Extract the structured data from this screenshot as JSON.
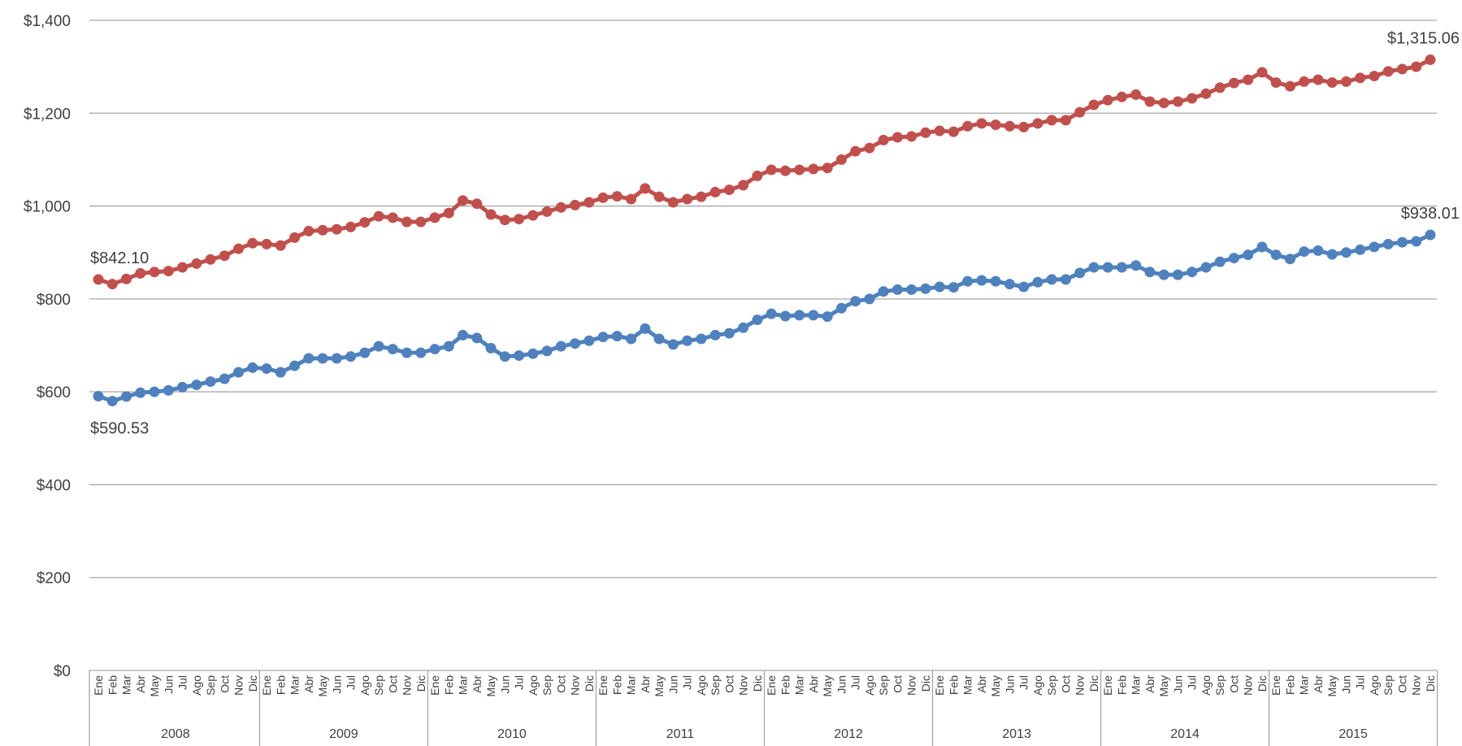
{
  "chart_data": {
    "type": "line",
    "title": "",
    "xlabel": "",
    "ylabel": "",
    "ylim": [
      0,
      1400
    ],
    "y_ticks": [
      "$0",
      "$200",
      "$400",
      "$600",
      "$800",
      "$1,000",
      "$1,200",
      "$1,400"
    ],
    "y_tick_values": [
      0,
      200,
      400,
      600,
      800,
      1000,
      1200,
      1400
    ],
    "grid": "horizontal",
    "legend": "none",
    "months": [
      "Ene",
      "Feb",
      "Mar",
      "Abr",
      "May",
      "Jun",
      "Jul",
      "Ago",
      "Sep",
      "Oct",
      "Nov",
      "Dic"
    ],
    "years": [
      "2008",
      "2009",
      "2010",
      "2011",
      "2012",
      "2013",
      "2014",
      "2015"
    ],
    "series": [
      {
        "color": "#c0504d",
        "values": [
          842,
          832,
          843,
          855,
          858,
          860,
          868,
          876,
          885,
          893,
          908,
          920,
          918,
          915,
          932,
          946,
          948,
          950,
          955,
          965,
          978,
          975,
          966,
          966,
          975,
          985,
          1012,
          1005,
          982,
          970,
          972,
          980,
          988,
          997,
          1002,
          1008,
          1018,
          1021,
          1015,
          1038,
          1020,
          1008,
          1015,
          1020,
          1030,
          1035,
          1045,
          1065,
          1078,
          1076,
          1078,
          1080,
          1082,
          1100,
          1118,
          1125,
          1142,
          1148,
          1150,
          1158,
          1162,
          1160,
          1172,
          1178,
          1175,
          1172,
          1170,
          1178,
          1185,
          1185,
          1202,
          1218,
          1228,
          1235,
          1240,
          1225,
          1222,
          1225,
          1232,
          1242,
          1255,
          1265,
          1272,
          1288,
          1266,
          1258,
          1268,
          1272,
          1266,
          1268,
          1276,
          1280,
          1290,
          1295,
          1300,
          1315.06
        ]
      },
      {
        "color": "#4f81bd",
        "values": [
          590.53,
          580,
          590,
          598,
          600,
          603,
          610,
          615,
          622,
          628,
          642,
          652,
          650,
          642,
          656,
          672,
          672,
          672,
          676,
          684,
          698,
          692,
          684,
          684,
          692,
          698,
          722,
          716,
          694,
          676,
          678,
          682,
          688,
          698,
          704,
          710,
          718,
          720,
          714,
          736,
          714,
          702,
          710,
          714,
          722,
          726,
          738,
          755,
          768,
          763,
          765,
          765,
          762,
          780,
          795,
          800,
          816,
          820,
          820,
          822,
          826,
          825,
          838,
          840,
          838,
          832,
          826,
          836,
          842,
          842,
          856,
          868,
          868,
          868,
          872,
          858,
          852,
          852,
          858,
          868,
          880,
          888,
          895,
          912,
          895,
          886,
          902,
          904,
          896,
          900,
          906,
          912,
          918,
          922,
          924,
          938.01
        ]
      }
    ],
    "annotations": [
      {
        "text": "$842.10",
        "series": 0,
        "index": 0,
        "anchor": "above"
      },
      {
        "text": "$1,315.06",
        "series": 0,
        "index": 95,
        "anchor": "above"
      },
      {
        "text": "$590.53",
        "series": 1,
        "index": 0,
        "anchor": "below"
      },
      {
        "text": "$938.01",
        "series": 1,
        "index": 95,
        "anchor": "above"
      }
    ]
  }
}
